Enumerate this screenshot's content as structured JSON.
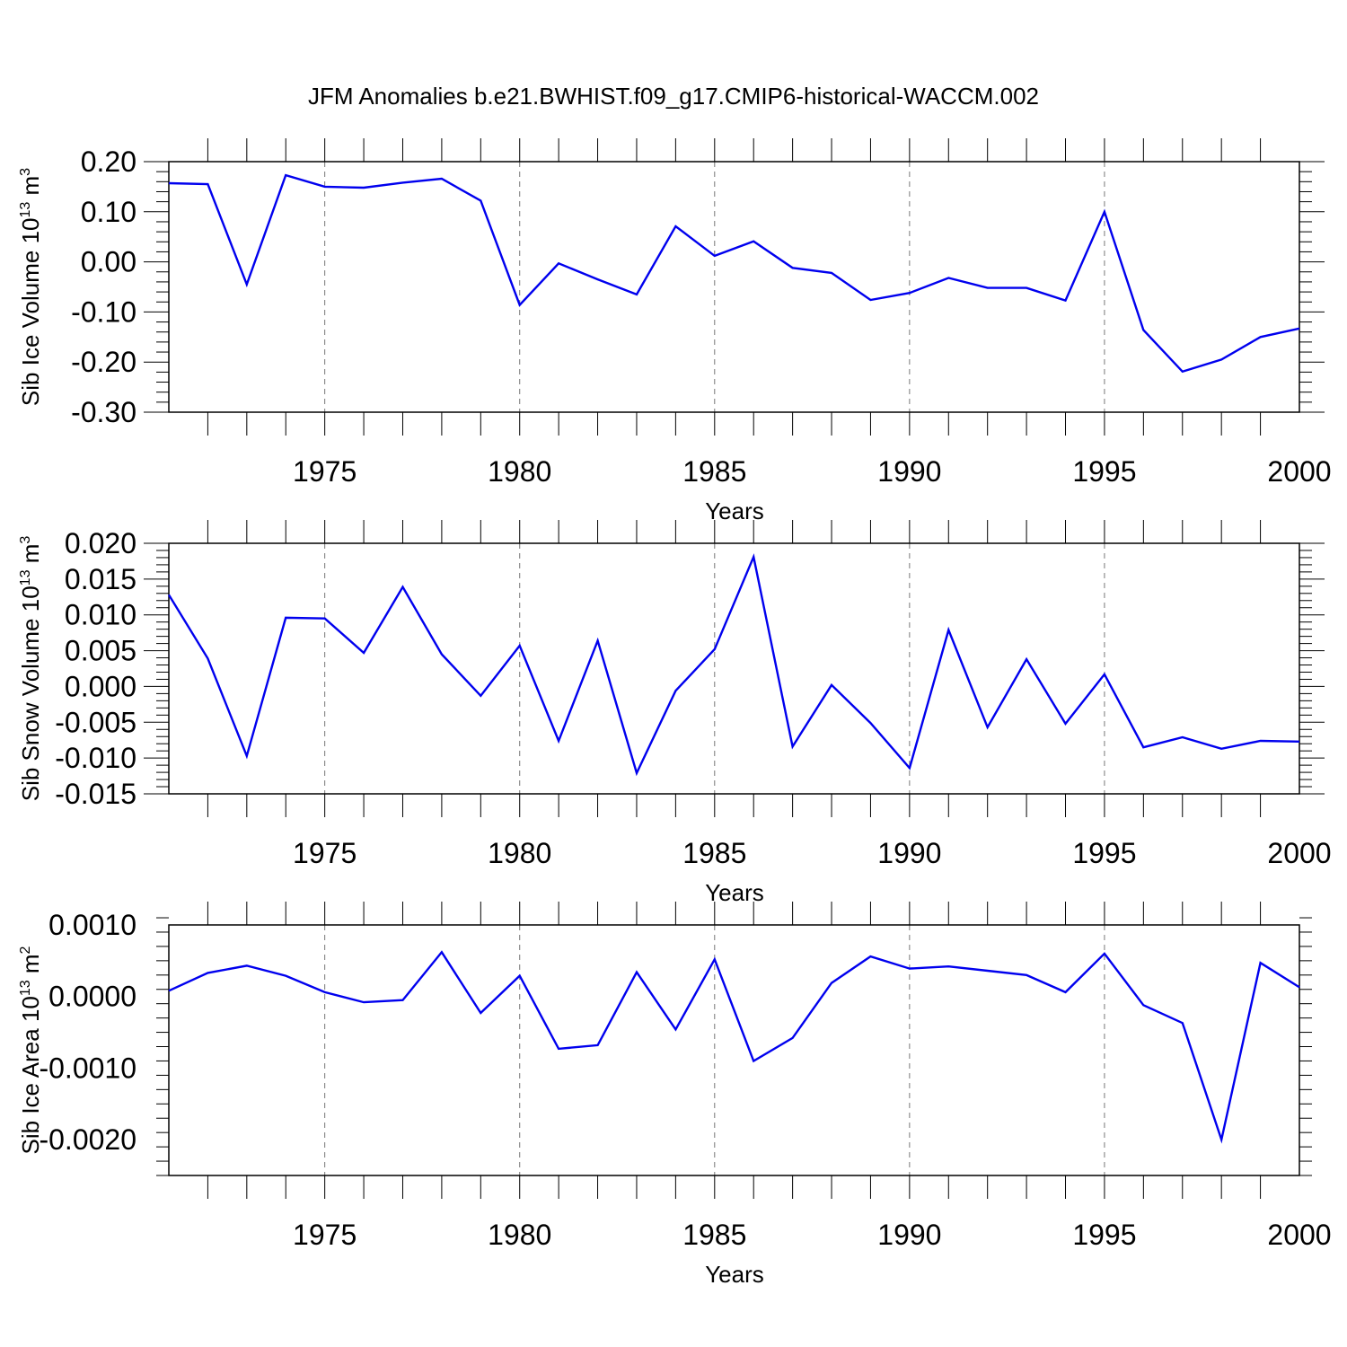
{
  "title": "JFM Anomalies b.e21.BWHIST.f09_g17.CMIP6-historical-WACCM.002",
  "line_color": "#0000ee",
  "chart_data": [
    {
      "type": "line",
      "name": "ice-volume",
      "ylabel_main": "Sib Ice Volume 10",
      "ylabel_exp": "13",
      "ylabel_unit": " m",
      "ylabel_unit_exp": "3",
      "xlabel": "Years",
      "xlim": [
        1971,
        2000
      ],
      "ylim": [
        -0.3,
        0.2
      ],
      "yticks": [
        -0.3,
        -0.2,
        -0.1,
        0.0,
        0.1,
        0.2
      ],
      "ytick_labels": [
        "-0.30",
        "-0.20",
        "-0.10",
        "0.00",
        "0.10",
        "0.20"
      ],
      "xticks": [
        1975,
        1980,
        1985,
        1990,
        1995,
        2000
      ],
      "xtick_labels": [
        "1975",
        "1980",
        "1985",
        "1990",
        "1995",
        "2000"
      ],
      "x": [
        1971,
        1972,
        1973,
        1974,
        1975,
        1976,
        1977,
        1978,
        1979,
        1980,
        1981,
        1982,
        1983,
        1984,
        1985,
        1986,
        1987,
        1988,
        1989,
        1990,
        1991,
        1992,
        1993,
        1994,
        1995,
        1996,
        1997,
        1998,
        1999,
        2000
      ],
      "y": [
        0.157,
        0.155,
        -0.045,
        0.173,
        0.15,
        0.148,
        0.158,
        0.166,
        0.122,
        -0.086,
        -0.003,
        -0.035,
        -0.065,
        0.071,
        0.012,
        0.041,
        -0.012,
        -0.022,
        -0.076,
        -0.062,
        -0.032,
        -0.052,
        -0.052,
        -0.077,
        0.1,
        -0.136,
        -0.219,
        -0.195,
        -0.15,
        -0.133
      ]
    },
    {
      "type": "line",
      "name": "snow-volume",
      "ylabel_main": "Sib Snow Volume 10",
      "ylabel_exp": "13",
      "ylabel_unit": " m",
      "ylabel_unit_exp": "3",
      "xlabel": "Years",
      "xlim": [
        1971,
        2000
      ],
      "ylim": [
        -0.015,
        0.02
      ],
      "yticks": [
        -0.015,
        -0.01,
        -0.005,
        0.0,
        0.005,
        0.01,
        0.015,
        0.02
      ],
      "ytick_labels": [
        "-0.015",
        "-0.010",
        "-0.005",
        "0.000",
        "0.005",
        "0.010",
        "0.015",
        "0.020"
      ],
      "xticks": [
        1975,
        1980,
        1985,
        1990,
        1995,
        2000
      ],
      "xtick_labels": [
        "1975",
        "1980",
        "1985",
        "1990",
        "1995",
        "2000"
      ],
      "x": [
        1971,
        1972,
        1973,
        1974,
        1975,
        1976,
        1977,
        1978,
        1979,
        1980,
        1981,
        1982,
        1983,
        1984,
        1985,
        1986,
        1987,
        1988,
        1989,
        1990,
        1991,
        1992,
        1993,
        1994,
        1995,
        1996,
        1997,
        1998,
        1999,
        2000
      ],
      "y": [
        0.0128,
        0.0039,
        -0.0097,
        0.0096,
        0.0095,
        0.0047,
        0.0139,
        0.0045,
        -0.0013,
        0.0057,
        -0.0076,
        0.0064,
        -0.0121,
        -0.0006,
        0.0052,
        0.0181,
        -0.0084,
        0.0002,
        -0.0051,
        -0.0114,
        0.0079,
        -0.0057,
        0.0038,
        -0.0052,
        0.0017,
        -0.0085,
        -0.0071,
        -0.0087,
        -0.0076,
        -0.0077
      ]
    },
    {
      "type": "line",
      "name": "ice-area",
      "ylabel_main": "Sib Ice Area 10",
      "ylabel_exp": "13",
      "ylabel_unit": " m",
      "ylabel_unit_exp": "2",
      "xlabel": "Years",
      "xlim": [
        1971,
        2000
      ],
      "ylim": [
        -0.0025,
        0.001
      ],
      "yticks": [
        -0.002,
        -0.001,
        0.0,
        0.001
      ],
      "ytick_labels": [
        "-0.0020",
        "-0.0010",
        "0.0000",
        "0.0010"
      ],
      "xticks": [
        1975,
        1980,
        1985,
        1990,
        1995,
        2000
      ],
      "xtick_labels": [
        "1975",
        "1980",
        "1985",
        "1990",
        "1995",
        "2000"
      ],
      "x": [
        1971,
        1972,
        1973,
        1974,
        1975,
        1976,
        1977,
        1978,
        1979,
        1980,
        1981,
        1982,
        1983,
        1984,
        1985,
        1986,
        1987,
        1988,
        1989,
        1990,
        1991,
        1992,
        1993,
        1994,
        1995,
        1996,
        1997,
        1998,
        1999,
        2000
      ],
      "y": [
        8e-05,
        0.00033,
        0.00043,
        0.00029,
        6e-05,
        -8e-05,
        -5e-05,
        0.00062,
        -0.00023,
        0.00029,
        -0.00073,
        -0.00068,
        0.00034,
        -0.00046,
        0.00052,
        -0.0009,
        -0.00058,
        0.00019,
        0.00056,
        0.00039,
        0.00042,
        0.00036,
        0.0003,
        6e-05,
        0.0006,
        -0.00012,
        -0.00037,
        -0.002,
        0.00047,
        0.00013
      ]
    }
  ]
}
